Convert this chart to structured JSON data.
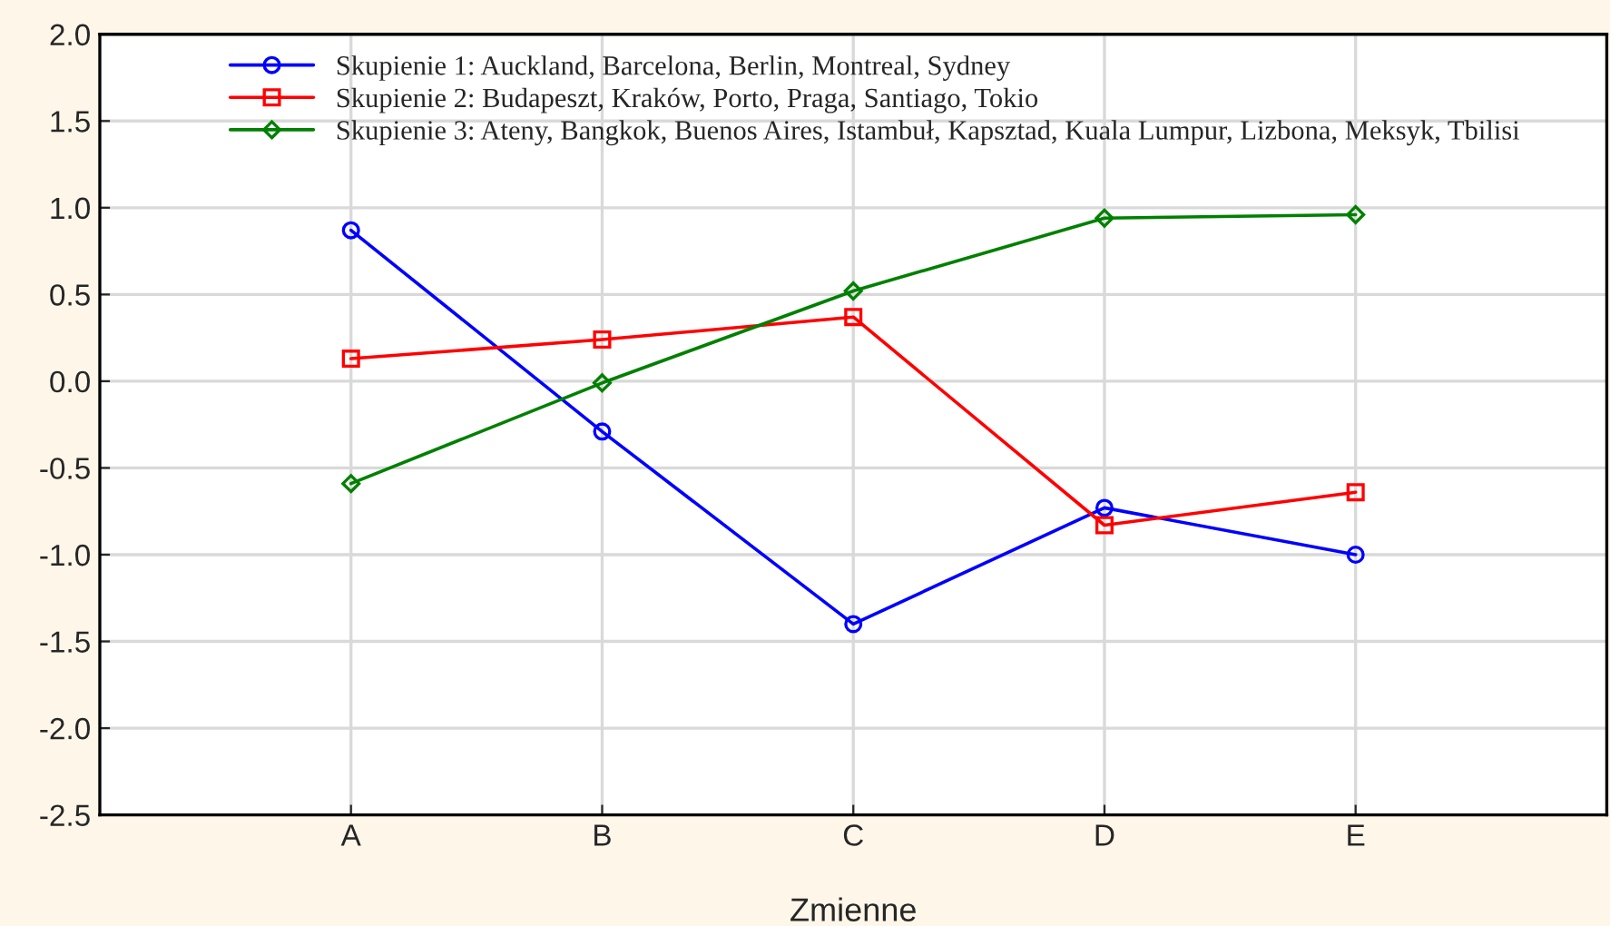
{
  "chart_data": {
    "type": "line",
    "xlabel": "Zmienne",
    "categories": [
      "A",
      "B",
      "C",
      "D",
      "E"
    ],
    "series": [
      {
        "name": "Skupienie 1: Auckland, Barcelona, Berlin, Montreal, Sydney",
        "color": "#0000ff",
        "marker": "circle",
        "values": [
          0.87,
          -0.29,
          -1.4,
          -0.73,
          -1.0
        ]
      },
      {
        "name": "Skupienie 2: Budapeszt, Kraków, Porto, Praga, Santiago, Tokio",
        "color": "#ff0000",
        "marker": "square",
        "values": [
          0.13,
          0.24,
          0.37,
          -0.83,
          -0.64
        ]
      },
      {
        "name": "Skupienie 3: Ateny, Bangkok, Buenos Aires, Istambuł, Kapsztad, Kuala Lumpur, Lizbona, Meksyk, Tbilisi",
        "color": "#008000",
        "marker": "diamond",
        "values": [
          -0.59,
          -0.01,
          0.52,
          0.94,
          0.96
        ]
      }
    ],
    "ylim": [
      -2.5,
      2.0
    ],
    "yticks": [
      {
        "value": -2.5,
        "label": "-2.5"
      },
      {
        "value": -2.0,
        "label": "-2.0"
      },
      {
        "value": -1.5,
        "label": "-1.5"
      },
      {
        "value": -1.0,
        "label": "-1.0"
      },
      {
        "value": -0.5,
        "label": "-0.5"
      },
      {
        "value": 0.0,
        "label": "0.0"
      },
      {
        "value": 0.5,
        "label": "0.5"
      },
      {
        "value": 1.0,
        "label": "1.0"
      },
      {
        "value": 1.5,
        "label": "1.5"
      },
      {
        "value": 2.0,
        "label": "2.0"
      }
    ],
    "grid": true,
    "legend": "top left",
    "line_style": "solid"
  }
}
